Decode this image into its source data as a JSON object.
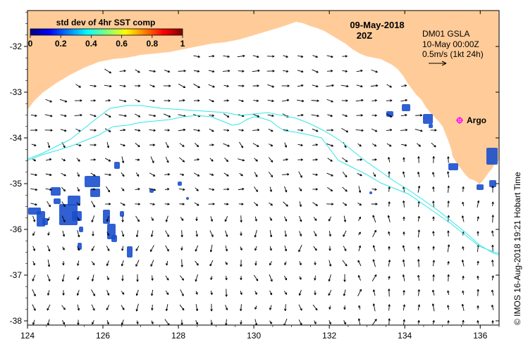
{
  "map": {
    "date": "09-May-2018",
    "time": "20Z",
    "product": "DM01 GSLA",
    "valid": "10-May 00:00Z",
    "scale": "0.5m/s (1kt 24h)",
    "credit": "© IMOS 16-Aug-2018 19:21 Hobart Time",
    "station": "Argo",
    "colorbar": {
      "title": "std dev of 4hr SST comp",
      "ticks": [
        "0",
        "0.2",
        "0.4",
        "0.6",
        "0.8",
        "1"
      ],
      "colors": [
        "#00007f",
        "#0000ff",
        "#007fff",
        "#00ffff",
        "#7fff7f",
        "#ffff00",
        "#ff7f00",
        "#ff0000",
        "#7f0000"
      ]
    },
    "x_ticks": [
      "124",
      "126",
      "128",
      "130",
      "132",
      "134",
      "136"
    ],
    "y_ticks": [
      "-32",
      "-33",
      "-34",
      "-35",
      "-36",
      "-37",
      "-38"
    ],
    "land_color": "#ffcc99",
    "contour_color": "#33e5e5",
    "station_color": "#ff00ff",
    "sst_patch_color": "#1a4fcc"
  }
}
